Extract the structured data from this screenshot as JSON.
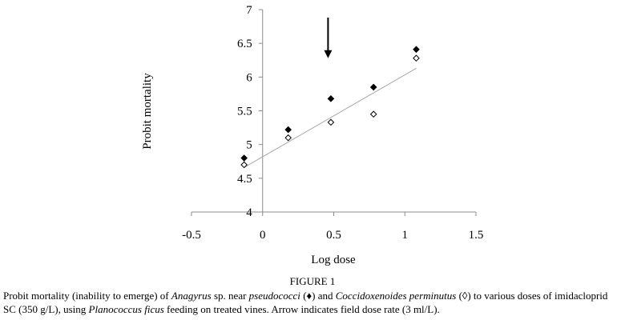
{
  "chart_data": {
    "type": "scatter",
    "xlabel": "Log dose",
    "ylabel": "Probit mortality",
    "xlim": [
      -0.5,
      1.5
    ],
    "ylim": [
      4,
      7
    ],
    "xticks": [
      "-0.5",
      "0",
      "0.5",
      "1",
      "1.5"
    ],
    "yticks": [
      "4",
      "4.5",
      "5",
      "5.5",
      "6",
      "6.5",
      "7"
    ],
    "grid": false,
    "series": [
      {
        "marker": "filled-diamond",
        "x": [
          -0.13,
          0.18,
          0.48,
          0.78,
          1.08
        ],
        "y": [
          4.8,
          5.22,
          5.68,
          5.85,
          6.41
        ]
      },
      {
        "marker": "open-diamond",
        "x": [
          -0.13,
          0.18,
          0.48,
          0.78,
          1.08
        ],
        "y": [
          4.7,
          5.1,
          5.33,
          5.45,
          6.28
        ]
      }
    ],
    "trendline": {
      "x": [
        -0.13,
        1.08
      ],
      "y": [
        4.66,
        6.13
      ]
    },
    "annotation": {
      "type": "arrow",
      "x": 0.46,
      "y_from": 7.0,
      "y_to": 6.28
    }
  },
  "figure": {
    "title": "FIGURE 1",
    "caption": {
      "p1": "Probit mortality (inability to emerge) of ",
      "species1": "Anagyrus",
      "p2": " sp. near ",
      "species1b": "pseudococci",
      "p3": " (♦) and ",
      "species2": "Coccidoxenoides perminutus",
      "p4": " (◊) to various doses of imidacloprid SC (350 g/L), using ",
      "species3": "Planococcus ficus",
      "p5": " feeding on treated vines. Arrow indicates field dose rate (3 ml/L)."
    }
  }
}
